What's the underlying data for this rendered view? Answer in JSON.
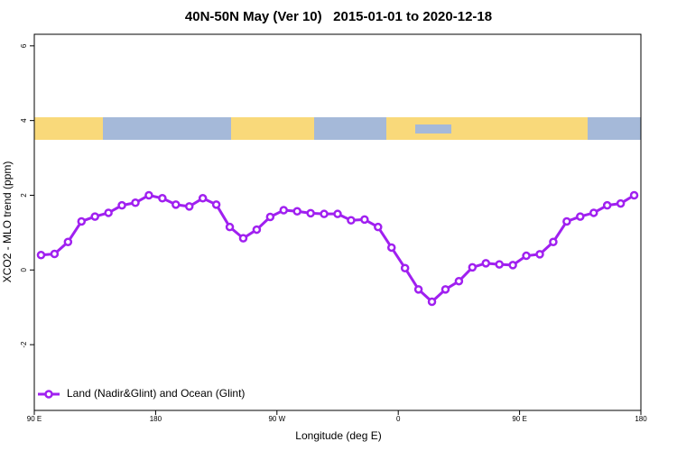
{
  "chart_data": {
    "type": "line",
    "title": "40N-50N May (Ver 10)   2015-01-01 to 2020-12-18",
    "x_label": "Longitude (deg E)",
    "y_label": "XCO2 - MLO trend (ppm)",
    "x": [
      95,
      105,
      115,
      125,
      135,
      145,
      155,
      165,
      175,
      185,
      195,
      205,
      215,
      225,
      235,
      245,
      255,
      265,
      275,
      285,
      295,
      305,
      315,
      325,
      335,
      345,
      355,
      365,
      375,
      385,
      395,
      405,
      415,
      425,
      435,
      445,
      455,
      465,
      475,
      485,
      495,
      505,
      515,
      525,
      535
    ],
    "series": [
      {
        "name": "Land (Nadir&Glint) and Ocean (Glint)",
        "color": "#a020f0",
        "values": [
          0.4,
          0.43,
          0.75,
          1.3,
          1.43,
          1.53,
          1.73,
          1.8,
          2.0,
          1.92,
          1.75,
          1.7,
          1.92,
          1.75,
          1.15,
          0.85,
          1.08,
          1.42,
          1.6,
          1.57,
          1.52,
          1.5,
          1.5,
          1.33,
          1.35,
          1.15,
          0.6,
          0.05,
          -0.52,
          -0.85,
          -0.52,
          -0.3,
          0.07,
          0.18,
          0.15,
          0.13,
          0.38,
          0.42,
          0.75,
          1.3,
          1.43,
          1.53,
          1.73,
          1.78,
          2.0
        ]
      }
    ],
    "xlim": [
      90,
      540
    ],
    "xticks": [
      {
        "value": 90,
        "label": "90 E"
      },
      {
        "value": 180,
        "label": "180"
      },
      {
        "value": 270,
        "label": "90 W"
      },
      {
        "value": 360,
        "label": "0"
      },
      {
        "value": 450,
        "label": "90 E"
      },
      {
        "value": 540,
        "label": "180"
      }
    ],
    "ylim": [
      -3.76,
      6.31
    ],
    "yticks": [
      -2,
      0,
      2,
      4,
      6
    ],
    "legend": "bottomleft"
  }
}
